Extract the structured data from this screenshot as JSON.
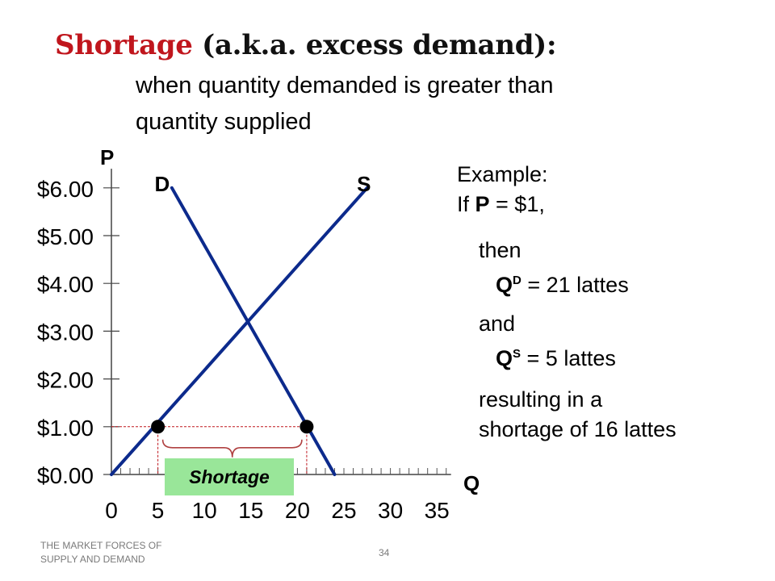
{
  "title": {
    "highlight": "Shortage",
    "rest": "(a.k.a. excess demand):"
  },
  "subtitle": {
    "line1": "when quantity demanded is greater than",
    "line2": "quantity supplied"
  },
  "example": {
    "label": "Example:",
    "if_line": {
      "prefix": "If ",
      "var": "P",
      "rest": " = $1,"
    },
    "then": "then",
    "qd": {
      "var": "Q",
      "sup": "D",
      "rest": " = 21 lattes"
    },
    "and": "and",
    "qs": {
      "var": "Q",
      "sup": "S",
      "rest": " = 5 lattes"
    },
    "result1": "resulting in a",
    "result2": "shortage of 16 lattes"
  },
  "footer": {
    "left": "THE MARKET FORCES OF SUPPLY AND DEMAND",
    "page": "34"
  },
  "colors": {
    "title_red": "#c0161d",
    "curve": "#0c2a8c",
    "dashed": "#c0161d",
    "brace": "#b04040",
    "shortage_box": "#99e699"
  },
  "chart_data": {
    "type": "line",
    "xlabel": "Q",
    "ylabel": "P",
    "xlim": [
      0,
      36
    ],
    "ylim": [
      0,
      6.4
    ],
    "x_ticks": [
      0,
      5,
      10,
      15,
      20,
      25,
      30,
      35
    ],
    "y_ticks": [
      0,
      1,
      2,
      3,
      4,
      5,
      6
    ],
    "y_tick_labels": [
      "$0.00",
      "$1.00",
      "$2.00",
      "$3.00",
      "$4.00",
      "$5.00",
      "$6.00"
    ],
    "x_minor_step": 1,
    "series": [
      {
        "name": "D",
        "points": [
          [
            24,
            0
          ],
          [
            6.5,
            6.0
          ]
        ]
      },
      {
        "name": "S",
        "points": [
          [
            0,
            0
          ],
          [
            27.5,
            6.0
          ]
        ]
      }
    ],
    "price_line": 1,
    "markers": [
      [
        5,
        1
      ],
      [
        21,
        1
      ]
    ],
    "annotation": "Shortage"
  }
}
